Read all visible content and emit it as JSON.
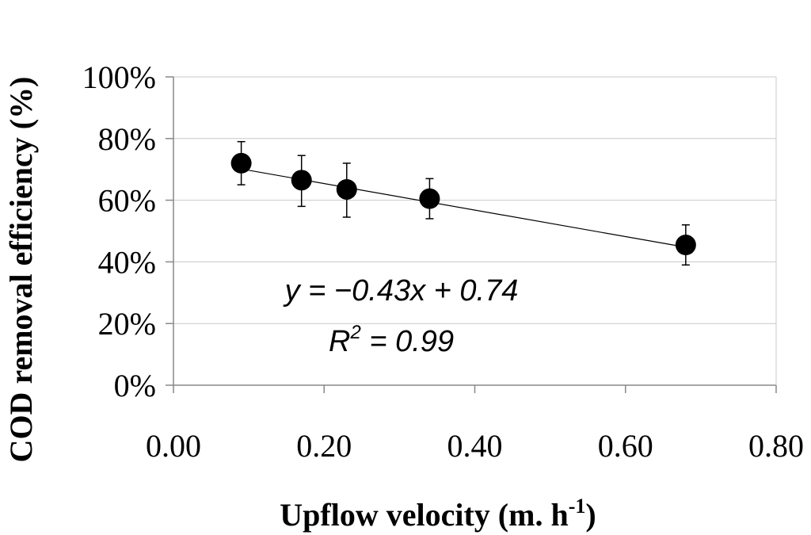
{
  "chart_data": {
    "type": "scatter",
    "title": "",
    "xlabel": "Upflow velocity (m. h",
    "xlabel_superscript": "-1",
    "xlabel_suffix": ")",
    "ylabel": "COD removal efficiency (%)",
    "xlim": [
      0,
      0.8
    ],
    "ylim": [
      0,
      1.0
    ],
    "x_ticks": [
      0.0,
      0.2,
      0.4,
      0.6,
      0.8
    ],
    "x_tick_labels": [
      "0.00",
      "0.20",
      "0.40",
      "0.60",
      "0.80"
    ],
    "y_ticks": [
      0,
      0.2,
      0.4,
      0.6,
      0.8,
      1.0
    ],
    "y_tick_labels": [
      "0%",
      "20%",
      "40%",
      "60%",
      "80%",
      "100%"
    ],
    "grid": "horizontal",
    "series": [
      {
        "name": "COD removal efficiency",
        "points": [
          {
            "x": 0.09,
            "y": 0.72,
            "err_low": 0.65,
            "err_high": 0.79
          },
          {
            "x": 0.17,
            "y": 0.665,
            "err_low": 0.58,
            "err_high": 0.745
          },
          {
            "x": 0.23,
            "y": 0.635,
            "err_low": 0.545,
            "err_high": 0.72
          },
          {
            "x": 0.34,
            "y": 0.605,
            "err_low": 0.54,
            "err_high": 0.67
          },
          {
            "x": 0.68,
            "y": 0.455,
            "err_low": 0.39,
            "err_high": 0.52
          }
        ]
      }
    ],
    "trendline": {
      "type": "linear",
      "slope": -0.43,
      "intercept": 0.74,
      "x_start": 0.09,
      "x_end": 0.68
    },
    "annotations": {
      "equation": "y = −0.43x + 0.74",
      "r2_prefix": "R",
      "r2_sup": "2",
      "r2_suffix": " = 0.99"
    }
  }
}
